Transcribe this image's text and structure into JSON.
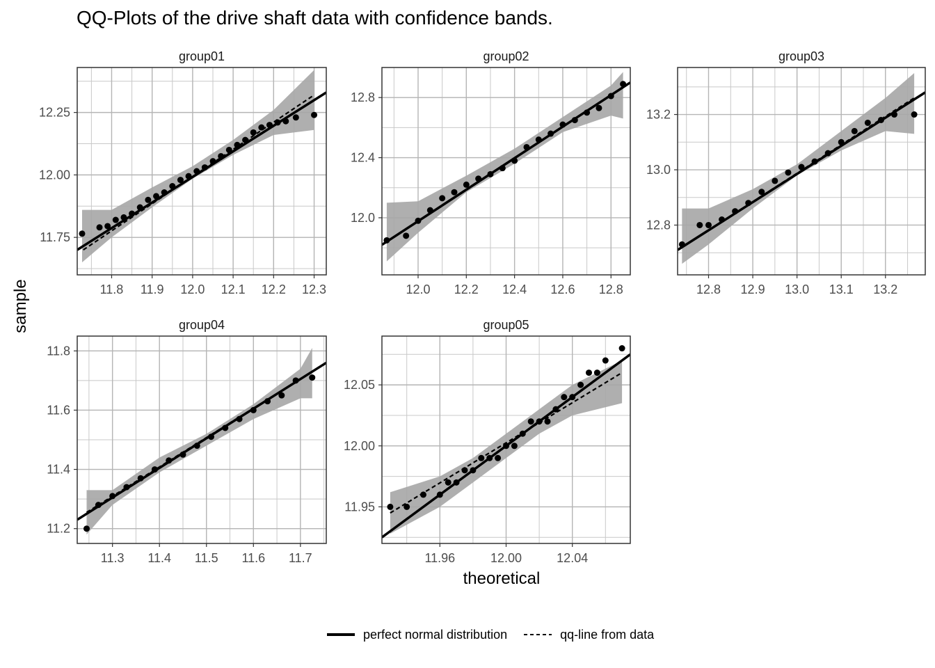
{
  "title": "QQ-Plots of the drive shaft data with confidence bands.",
  "chart_data": {
    "type": "scatter",
    "title": "QQ-Plots of the drive shaft data with confidence bands.",
    "xlabel": "theoretical",
    "ylabel": "sample",
    "grid": true,
    "legend_position": "bottom",
    "colors": {
      "points": "#000000",
      "band": "#a6a6a6",
      "grid": "#c8c8c8",
      "panel_border": "#333333"
    },
    "legend": [
      {
        "label": "perfect normal distribution",
        "style": "solid"
      },
      {
        "label": "qq-line from data",
        "style": "dashed"
      }
    ],
    "panels": [
      {
        "name": "group01",
        "xlim": [
          11.715,
          12.33
        ],
        "ylim": [
          11.6,
          12.43
        ],
        "xticks": [
          "11.8",
          "11.9",
          "12.0",
          "12.1",
          "12.2",
          "12.3"
        ],
        "yticks": [
          "11.75",
          "12.00",
          "12.25"
        ],
        "points": [
          [
            11.727,
            11.765
          ],
          [
            11.77,
            11.79
          ],
          [
            11.79,
            11.795
          ],
          [
            11.81,
            11.82
          ],
          [
            11.83,
            11.83
          ],
          [
            11.85,
            11.845
          ],
          [
            11.87,
            11.87
          ],
          [
            11.89,
            11.9
          ],
          [
            11.91,
            11.915
          ],
          [
            11.93,
            11.93
          ],
          [
            11.95,
            11.955
          ],
          [
            11.97,
            11.98
          ],
          [
            11.99,
            11.995
          ],
          [
            12.01,
            12.015
          ],
          [
            12.03,
            12.03
          ],
          [
            12.05,
            12.055
          ],
          [
            12.07,
            12.075
          ],
          [
            12.09,
            12.1
          ],
          [
            12.11,
            12.12
          ],
          [
            12.13,
            12.14
          ],
          [
            12.15,
            12.17
          ],
          [
            12.17,
            12.19
          ],
          [
            12.19,
            12.2
          ],
          [
            12.21,
            12.21
          ],
          [
            12.23,
            12.215
          ],
          [
            12.255,
            12.23
          ],
          [
            12.3,
            12.24
          ]
        ],
        "line_perfect": [
          [
            11.715,
            11.7
          ],
          [
            12.33,
            12.33
          ]
        ],
        "line_qq": [
          [
            11.73,
            11.7
          ],
          [
            12.3,
            12.32
          ]
        ],
        "band": [
          [
            11.727,
            11.65,
            11.86
          ],
          [
            11.8,
            11.75,
            11.86
          ],
          [
            11.9,
            11.87,
            11.95
          ],
          [
            12.0,
            11.985,
            12.035
          ],
          [
            12.1,
            12.08,
            12.14
          ],
          [
            12.2,
            12.16,
            12.26
          ],
          [
            12.3,
            12.18,
            12.42
          ]
        ]
      },
      {
        "name": "group02",
        "xlim": [
          11.85,
          12.88
        ],
        "ylim": [
          11.62,
          13.0
        ],
        "xticks": [
          "12.0",
          "12.2",
          "12.4",
          "12.6",
          "12.8"
        ],
        "yticks": [
          "12.0",
          "12.4",
          "12.8"
        ],
        "points": [
          [
            11.87,
            11.85
          ],
          [
            11.95,
            11.88
          ],
          [
            12.0,
            11.98
          ],
          [
            12.05,
            12.05
          ],
          [
            12.1,
            12.13
          ],
          [
            12.15,
            12.17
          ],
          [
            12.2,
            12.22
          ],
          [
            12.25,
            12.26
          ],
          [
            12.3,
            12.29
          ],
          [
            12.35,
            12.33
          ],
          [
            12.4,
            12.38
          ],
          [
            12.45,
            12.47
          ],
          [
            12.5,
            12.52
          ],
          [
            12.55,
            12.56
          ],
          [
            12.6,
            12.62
          ],
          [
            12.65,
            12.65
          ],
          [
            12.7,
            12.7
          ],
          [
            12.75,
            12.73
          ],
          [
            12.8,
            12.81
          ],
          [
            12.85,
            12.89
          ]
        ],
        "line_perfect": [
          [
            11.85,
            11.82
          ],
          [
            12.88,
            12.9
          ]
        ],
        "line_qq": [
          [
            11.87,
            11.84
          ],
          [
            12.85,
            12.87
          ]
        ],
        "band": [
          [
            11.87,
            11.71,
            12.1
          ],
          [
            12.0,
            11.9,
            12.11
          ],
          [
            12.2,
            12.17,
            12.28
          ],
          [
            12.4,
            12.36,
            12.46
          ],
          [
            12.6,
            12.57,
            12.67
          ],
          [
            12.8,
            12.68,
            12.88
          ],
          [
            12.85,
            12.66,
            12.97
          ]
        ]
      },
      {
        "name": "group03",
        "xlim": [
          12.73,
          13.29
        ],
        "ylim": [
          12.62,
          13.37
        ],
        "xticks": [
          "12.8",
          "12.9",
          "13.0",
          "13.1",
          "13.2"
        ],
        "yticks": [
          "12.8",
          "13.0",
          "13.2"
        ],
        "points": [
          [
            12.74,
            12.73
          ],
          [
            12.78,
            12.8
          ],
          [
            12.8,
            12.8
          ],
          [
            12.83,
            12.82
          ],
          [
            12.86,
            12.85
          ],
          [
            12.89,
            12.88
          ],
          [
            12.92,
            12.92
          ],
          [
            12.95,
            12.96
          ],
          [
            12.98,
            12.99
          ],
          [
            13.01,
            13.01
          ],
          [
            13.04,
            13.03
          ],
          [
            13.07,
            13.06
          ],
          [
            13.1,
            13.1
          ],
          [
            13.13,
            13.14
          ],
          [
            13.16,
            13.17
          ],
          [
            13.19,
            13.18
          ],
          [
            13.22,
            13.2
          ],
          [
            13.265,
            13.2
          ]
        ],
        "line_perfect": [
          [
            12.73,
            12.71
          ],
          [
            13.29,
            13.28
          ]
        ],
        "line_qq": [
          [
            12.74,
            12.72
          ],
          [
            13.265,
            13.26
          ]
        ],
        "band": [
          [
            12.74,
            12.66,
            12.86
          ],
          [
            12.8,
            12.73,
            12.86
          ],
          [
            12.9,
            12.86,
            12.93
          ],
          [
            13.0,
            12.98,
            13.02
          ],
          [
            13.1,
            13.07,
            13.14
          ],
          [
            13.2,
            13.14,
            13.26
          ],
          [
            13.265,
            13.13,
            13.35
          ]
        ]
      },
      {
        "name": "group04",
        "xlim": [
          11.225,
          11.755
        ],
        "ylim": [
          11.15,
          11.85
        ],
        "xticks": [
          "11.3",
          "11.4",
          "11.5",
          "11.6",
          "11.7"
        ],
        "yticks": [
          "11.2",
          "11.4",
          "11.6",
          "11.8"
        ],
        "points": [
          [
            11.245,
            11.2
          ],
          [
            11.27,
            11.28
          ],
          [
            11.3,
            11.31
          ],
          [
            11.33,
            11.34
          ],
          [
            11.36,
            11.37
          ],
          [
            11.39,
            11.4
          ],
          [
            11.42,
            11.43
          ],
          [
            11.45,
            11.45
          ],
          [
            11.48,
            11.48
          ],
          [
            11.51,
            11.51
          ],
          [
            11.54,
            11.54
          ],
          [
            11.57,
            11.57
          ],
          [
            11.6,
            11.6
          ],
          [
            11.63,
            11.63
          ],
          [
            11.66,
            11.65
          ],
          [
            11.69,
            11.7
          ],
          [
            11.725,
            11.71
          ]
        ],
        "line_perfect": [
          [
            11.225,
            11.23
          ],
          [
            11.755,
            11.76
          ]
        ],
        "line_qq": [
          [
            11.245,
            11.255
          ],
          [
            11.725,
            11.73
          ]
        ],
        "band": [
          [
            11.245,
            11.18,
            11.33
          ],
          [
            11.3,
            11.28,
            11.33
          ],
          [
            11.4,
            11.39,
            11.44
          ],
          [
            11.5,
            11.48,
            11.52
          ],
          [
            11.6,
            11.57,
            11.62
          ],
          [
            11.7,
            11.64,
            11.74
          ],
          [
            11.725,
            11.64,
            11.81
          ]
        ]
      },
      {
        "name": "group05",
        "xlim": [
          11.925,
          12.075
        ],
        "ylim": [
          11.92,
          12.09
        ],
        "xticks": [
          "11.96",
          "12.00",
          "12.04"
        ],
        "yticks": [
          "11.95",
          "12.00",
          "12.05"
        ],
        "points": [
          [
            11.93,
            11.95
          ],
          [
            11.94,
            11.95
          ],
          [
            11.95,
            11.96
          ],
          [
            11.96,
            11.96
          ],
          [
            11.965,
            11.97
          ],
          [
            11.97,
            11.97
          ],
          [
            11.975,
            11.98
          ],
          [
            11.98,
            11.98
          ],
          [
            11.985,
            11.99
          ],
          [
            11.99,
            11.99
          ],
          [
            11.995,
            11.99
          ],
          [
            12.0,
            12.0
          ],
          [
            12.005,
            12.0
          ],
          [
            12.01,
            12.01
          ],
          [
            12.015,
            12.02
          ],
          [
            12.02,
            12.02
          ],
          [
            12.025,
            12.02
          ],
          [
            12.03,
            12.03
          ],
          [
            12.035,
            12.04
          ],
          [
            12.04,
            12.04
          ],
          [
            12.045,
            12.05
          ],
          [
            12.05,
            12.06
          ],
          [
            12.055,
            12.06
          ],
          [
            12.06,
            12.07
          ],
          [
            12.07,
            12.08
          ]
        ],
        "line_perfect": [
          [
            11.925,
            11.925
          ],
          [
            12.075,
            12.075
          ]
        ],
        "line_qq": [
          [
            11.93,
            11.945
          ],
          [
            12.07,
            12.06
          ]
        ],
        "band": [
          [
            11.93,
            11.928,
            11.962
          ],
          [
            11.96,
            11.95,
            11.975
          ],
          [
            11.98,
            11.97,
            11.99
          ],
          [
            12.0,
            11.99,
            12.01
          ],
          [
            12.02,
            12.01,
            12.03
          ],
          [
            12.04,
            12.025,
            12.05
          ],
          [
            12.07,
            12.035,
            12.07
          ]
        ]
      }
    ]
  }
}
